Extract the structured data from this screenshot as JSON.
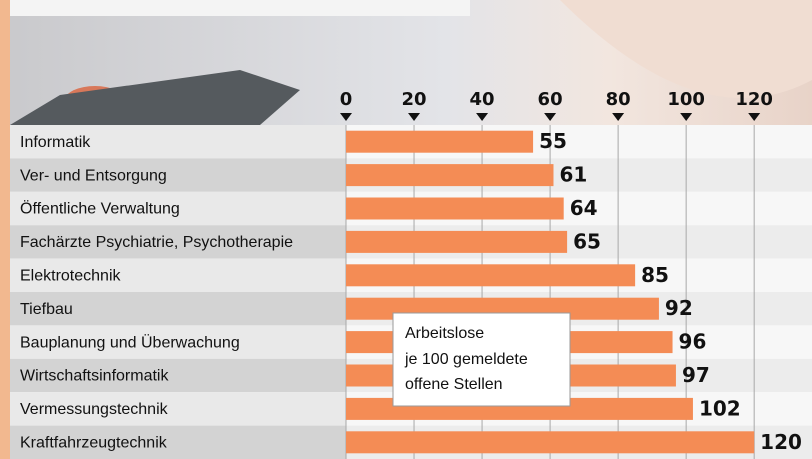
{
  "chart_data": {
    "type": "bar",
    "orientation": "horizontal",
    "categories": [
      "Informatik",
      "Ver- und Entsorgung",
      "Öffentliche Verwaltung",
      "Fachärzte Psychiatrie, Psychotherapie",
      "Elektrotechnik",
      "Tiefbau",
      "Bauplanung und Überwachung",
      "Wirtschaftsinformatik",
      "Vermessungstechnik",
      "Kraftfahrzeugtechnik"
    ],
    "values": [
      55,
      61,
      64,
      65,
      85,
      92,
      96,
      97,
      102,
      120
    ],
    "color": "#f48c55",
    "xlim": [
      0,
      137
    ],
    "xticks": [
      0,
      20,
      40,
      60,
      80,
      100,
      120
    ],
    "grid": true,
    "annotation": [
      "Arbeitslose",
      "je 100 gemeldete",
      "offene Stellen"
    ]
  }
}
